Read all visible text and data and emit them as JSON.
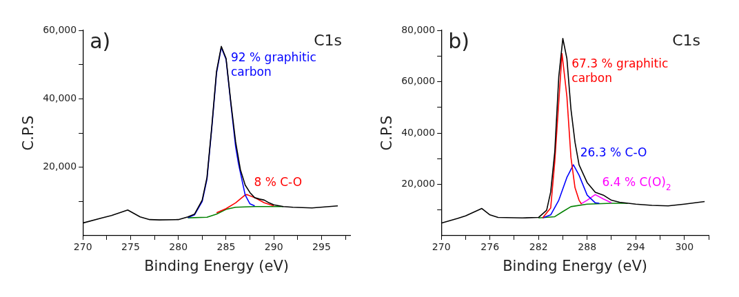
{
  "chart_data": [
    {
      "type": "line",
      "xlabel": "Binding Energy (eV)",
      "ylabel": "C.P.S",
      "annotations": [
        "a)",
        "C1s"
      ],
      "xlim": [
        270,
        298
      ],
      "ylim": [
        0,
        60000
      ],
      "xticks": [
        270,
        {
          "value": 272.5,
          "label": null
        },
        275,
        {
          "value": 277.5,
          "label": null
        },
        280,
        {
          "value": 282.5,
          "label": null
        },
        285,
        {
          "value": 287.5,
          "label": null
        },
        290,
        {
          "value": 292.5,
          "label": null
        },
        295,
        {
          "value": 297.5,
          "label": null
        }
      ],
      "yticks": [
        {
          "value": 10000,
          "label": null
        },
        {
          "value": 20000,
          "label": "20,000"
        },
        {
          "value": 30000,
          "label": null
        },
        {
          "value": 40000,
          "label": "40,000"
        },
        {
          "value": 50000,
          "label": null
        },
        {
          "value": 60000,
          "label": "60,000"
        }
      ],
      "grid": false,
      "legend": false,
      "marker": "none",
      "line_style": "solid",
      "series": [
        {
          "color": "#000000",
          "x": [
            270,
            272,
            273,
            274.7,
            276,
            277,
            278,
            280,
            281,
            281.7,
            282.5,
            283,
            283.5,
            284,
            284.5,
            285,
            285.5,
            286,
            286.5,
            287,
            287.5,
            288,
            288.5,
            289,
            289.5,
            290,
            291,
            292,
            294,
            296.7
          ],
          "values": [
            3700,
            5200,
            5900,
            7500,
            5500,
            4700,
            4600,
            4700,
            5500,
            6300,
            10400,
            17000,
            31800,
            48000,
            55300,
            51800,
            39000,
            27400,
            19300,
            14800,
            12600,
            11100,
            10700,
            10400,
            9600,
            9000,
            8500,
            8300,
            8100,
            8700
          ]
        },
        {
          "name": "92 % graphitic carbon",
          "color": "#0000ff",
          "x": [
            281,
            281.7,
            282.5,
            283,
            283.5,
            284,
            284.5,
            285,
            285.5,
            286,
            286.3,
            287,
            287.5,
            288
          ],
          "values": [
            5300,
            6100,
            10000,
            16500,
            31300,
            47500,
            55000,
            51500,
            38500,
            26000,
            21000,
            11900,
            9300,
            8700
          ]
        },
        {
          "name": "8 % C-O",
          "color": "#ff0000",
          "x": [
            284,
            285,
            286,
            287,
            287.2,
            288,
            289,
            290
          ],
          "values": [
            6700,
            7900,
            9600,
            11900,
            12000,
            11100,
            9600,
            8700
          ]
        },
        {
          "color": "#008000",
          "x": [
            281,
            283,
            284,
            285,
            286,
            288,
            291
          ],
          "values": [
            5200,
            5400,
            6300,
            7700,
            8300,
            8500,
            8500
          ]
        }
      ]
    },
    {
      "type": "line",
      "xlabel": "Binding Energy (eV)",
      "ylabel": "C.P.S",
      "annotations": [
        "b)",
        "C1s"
      ],
      "xlim": [
        270,
        303
      ],
      "ylim": [
        0,
        80000
      ],
      "xticks": [
        270,
        {
          "value": 273,
          "label": null
        },
        276,
        {
          "value": 279,
          "label": null
        },
        282,
        {
          "value": 285,
          "label": null
        },
        288,
        {
          "value": 291,
          "label": null
        },
        294,
        {
          "value": 297,
          "label": null
        },
        300,
        {
          "value": 303,
          "label": null
        }
      ],
      "yticks": [
        {
          "value": 10000,
          "label": null
        },
        {
          "value": 20000,
          "label": "20,000"
        },
        {
          "value": 30000,
          "label": null
        },
        {
          "value": 40000,
          "label": "40,000"
        },
        {
          "value": 50000,
          "label": null
        },
        {
          "value": 60000,
          "label": "60,000"
        },
        {
          "value": 70000,
          "label": null
        },
        {
          "value": 80000,
          "label": "80,000"
        }
      ],
      "grid": false,
      "legend": false,
      "marker": "none",
      "line_style": "solid",
      "series": [
        {
          "color": "#000000",
          "x": [
            270,
            272,
            273,
            275,
            276,
            277,
            280,
            282,
            283,
            283.5,
            284,
            284.5,
            285,
            285.5,
            286,
            286.5,
            287,
            288,
            289,
            290,
            291,
            292,
            294,
            296,
            298,
            300,
            302.5
          ],
          "values": [
            4900,
            6700,
            7700,
            10600,
            8100,
            7100,
            6900,
            7100,
            9900,
            17000,
            32500,
            62000,
            76800,
            69000,
            49300,
            36400,
            27600,
            20700,
            16900,
            15800,
            13800,
            13000,
            12300,
            11800,
            11600,
            12300,
            13300
          ]
        },
        {
          "name": "67.3 % graphitic carbon",
          "color": "#ff0000",
          "x": [
            282.5,
            283.5,
            284,
            284.5,
            284.9,
            285.5,
            286,
            286.5,
            287,
            287.3
          ],
          "values": [
            6900,
            10800,
            28600,
            52200,
            70900,
            54200,
            30500,
            18700,
            13800,
            12300
          ]
        },
        {
          "name": "26.3 % C-O",
          "color": "#0000ff",
          "x": [
            282.5,
            283.5,
            284.5,
            285.5,
            286.3,
            287,
            288,
            289,
            289.5
          ],
          "values": [
            6900,
            8100,
            13800,
            22700,
            27600,
            23600,
            15800,
            12800,
            12600
          ]
        },
        {
          "name": "6.4 % C(O)$_{2}$",
          "color": "#ff00ff",
          "x": [
            287.2,
            288,
            289,
            290,
            291
          ],
          "values": [
            12300,
            13800,
            16000,
            14300,
            12800
          ]
        },
        {
          "color": "#008000",
          "x": [
            282,
            284,
            285,
            286,
            288,
            291,
            293
          ],
          "values": [
            6900,
            7400,
            9400,
            11300,
            12300,
            12600,
            12600
          ]
        }
      ]
    }
  ]
}
